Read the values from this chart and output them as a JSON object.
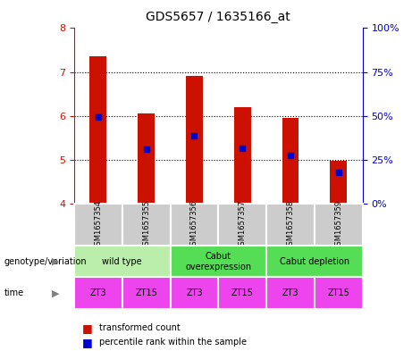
{
  "title": "GDS5657 / 1635166_at",
  "samples": [
    "GSM1657354",
    "GSM1657355",
    "GSM1657356",
    "GSM1657357",
    "GSM1657358",
    "GSM1657359"
  ],
  "bar_values": [
    7.35,
    6.05,
    6.9,
    6.2,
    5.95,
    4.97
  ],
  "bar_base": 4.0,
  "blue_marker_values": [
    5.97,
    5.25,
    5.55,
    5.27,
    5.1,
    4.72
  ],
  "ylim": [
    4.0,
    8.0
  ],
  "yticks_left": [
    4,
    5,
    6,
    7,
    8
  ],
  "yticks_right": [
    0,
    25,
    50,
    75,
    100
  ],
  "bar_color": "#cc1100",
  "blue_color": "#0000cc",
  "group_defs": [
    {
      "start": 0,
      "end": 2,
      "label": "wild type",
      "color": "#bbeeaa"
    },
    {
      "start": 2,
      "end": 4,
      "label": "Cabut\noverexpression",
      "color": "#55dd55"
    },
    {
      "start": 4,
      "end": 6,
      "label": "Cabut depletion",
      "color": "#55dd55"
    }
  ],
  "time_labels": [
    "ZT3",
    "ZT15",
    "ZT3",
    "ZT15",
    "ZT3",
    "ZT15"
  ],
  "time_color": "#ee44ee",
  "sample_bg_color": "#cccccc",
  "legend_items": [
    {
      "color": "#cc1100",
      "label": "transformed count"
    },
    {
      "color": "#0000cc",
      "label": "percentile rank within the sample"
    }
  ],
  "left_axis_color": "#cc1100",
  "right_axis_color": "#0000cc",
  "genotype_label": "genotype/variation",
  "time_label": "time"
}
